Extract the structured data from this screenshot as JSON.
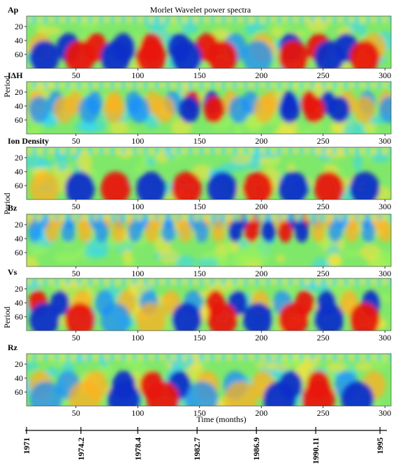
{
  "chart_data": {
    "type": "heatmap",
    "title": "Morlet Wavelet power spectra",
    "xlabel": "Time (months)",
    "ylabel": "Period",
    "xlim": [
      10,
      305
    ],
    "ylim": [
      5,
      80
    ],
    "x_ticks": [
      50,
      100,
      150,
      200,
      250,
      300
    ],
    "y_ticks": [
      20,
      40,
      60
    ],
    "panels": [
      {
        "name": "Ap",
        "dominant_periods": [
          50,
          64
        ],
        "strong_power_months": [
          50,
          95,
          150,
          250
        ]
      },
      {
        "name": "IΔH",
        "dominant_periods": [
          35,
          45
        ],
        "strong_power_months": [
          155,
          240
        ]
      },
      {
        "name": "Ion Density",
        "dominant_periods": [
          64
        ],
        "strong_power_months": [
          60,
          100,
          160,
          210,
          270
        ]
      },
      {
        "name": "Bz",
        "dominant_periods": [
          15,
          30
        ],
        "strong_power_months": [
          190,
          230
        ]
      },
      {
        "name": "Vs",
        "dominant_periods": [
          40,
          64
        ],
        "strong_power_months": [
          20,
          170,
          245,
          300
        ]
      },
      {
        "name": "Rz",
        "dominant_periods": [
          50,
          70
        ],
        "strong_power_months": [
          110,
          240
        ]
      }
    ],
    "date_axis": {
      "labels": [
        "1971",
        "1974.2",
        "1978.4",
        "1982.7",
        "1986.9",
        "1990.11",
        "1995"
      ],
      "months": [
        10,
        54,
        100,
        148,
        196,
        244,
        296
      ]
    }
  }
}
